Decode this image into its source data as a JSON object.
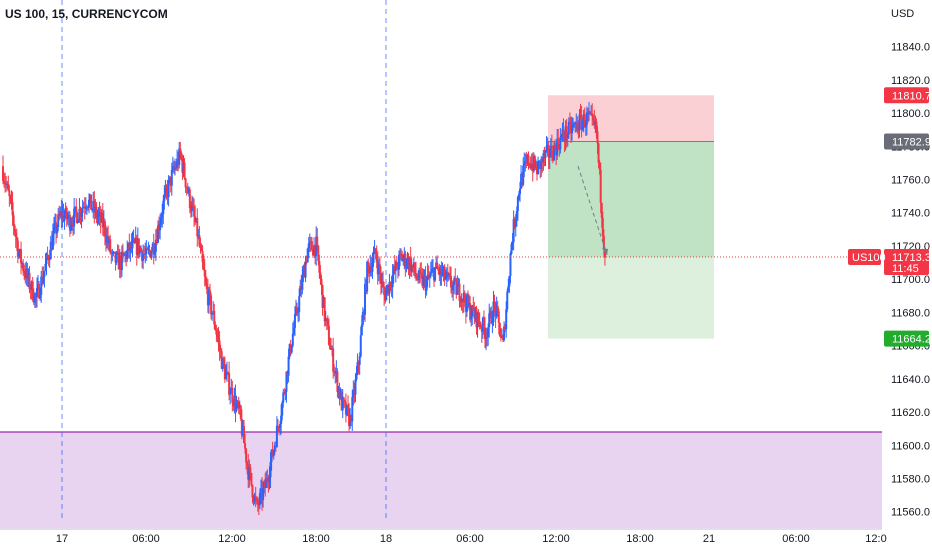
{
  "chart_data": {
    "type": "candlestick",
    "title": "US 100, 15, CURRENCYCOM",
    "currency_label": "USD",
    "symbol": "US100",
    "ylim": [
      11555,
      11850
    ],
    "y_ticks": [
      11560,
      11580,
      11600,
      11620,
      11640,
      11660,
      11680,
      11700,
      11720,
      11740,
      11760,
      11780,
      11800,
      11820,
      11840
    ],
    "x_ticks": [
      "17",
      "06:00",
      "12:00",
      "18:00",
      "18",
      "06:00",
      "12:00",
      "18:00",
      "21",
      "06:00",
      "12:0"
    ],
    "day_separators": [
      "17",
      "18"
    ],
    "current_price": {
      "value": 11713.3,
      "label": "11713.3",
      "countdown": "11:45"
    },
    "position": {
      "kind": "short",
      "entry": 11782.9,
      "entry_label": "11782.9",
      "stop": 11810.7,
      "stop_label": "11810.7",
      "target": 11664.2,
      "target_label": "11664.2"
    },
    "support_zone": {
      "top": 11608,
      "bottom": 11555
    },
    "price_path": [
      11768,
      11745,
      11715,
      11700,
      11688,
      11705,
      11725,
      11740,
      11735,
      11740,
      11748,
      11740,
      11732,
      11712,
      11710,
      11718,
      11720,
      11713,
      11722,
      11745,
      11762,
      11775,
      11750,
      11728,
      11695,
      11675,
      11648,
      11632,
      11618,
      11585,
      11562,
      11575,
      11598,
      11625,
      11660,
      11688,
      11718,
      11720,
      11678,
      11650,
      11625,
      11615,
      11650,
      11705,
      11715,
      11690,
      11702,
      11713,
      11710,
      11700,
      11698,
      11706,
      11702,
      11696,
      11692,
      11682,
      11676,
      11668,
      11684,
      11660,
      11722,
      11758,
      11772,
      11766,
      11774,
      11778,
      11786,
      11790,
      11794,
      11797,
      11789,
      11713
    ],
    "colors": {
      "up": "#2962ff",
      "down": "#f23645",
      "zone": "#e8d3f0",
      "zone_line": "#9c27b0",
      "stop_zone": "#fbd0d4",
      "target_zone": "#bfe3c4",
      "target_zone_light": "#dcf0dd",
      "entry_line": "#787b86",
      "current_line": "#f23645",
      "target_tag": "#22ab2c",
      "entry_tag": "#6a6d78"
    }
  }
}
